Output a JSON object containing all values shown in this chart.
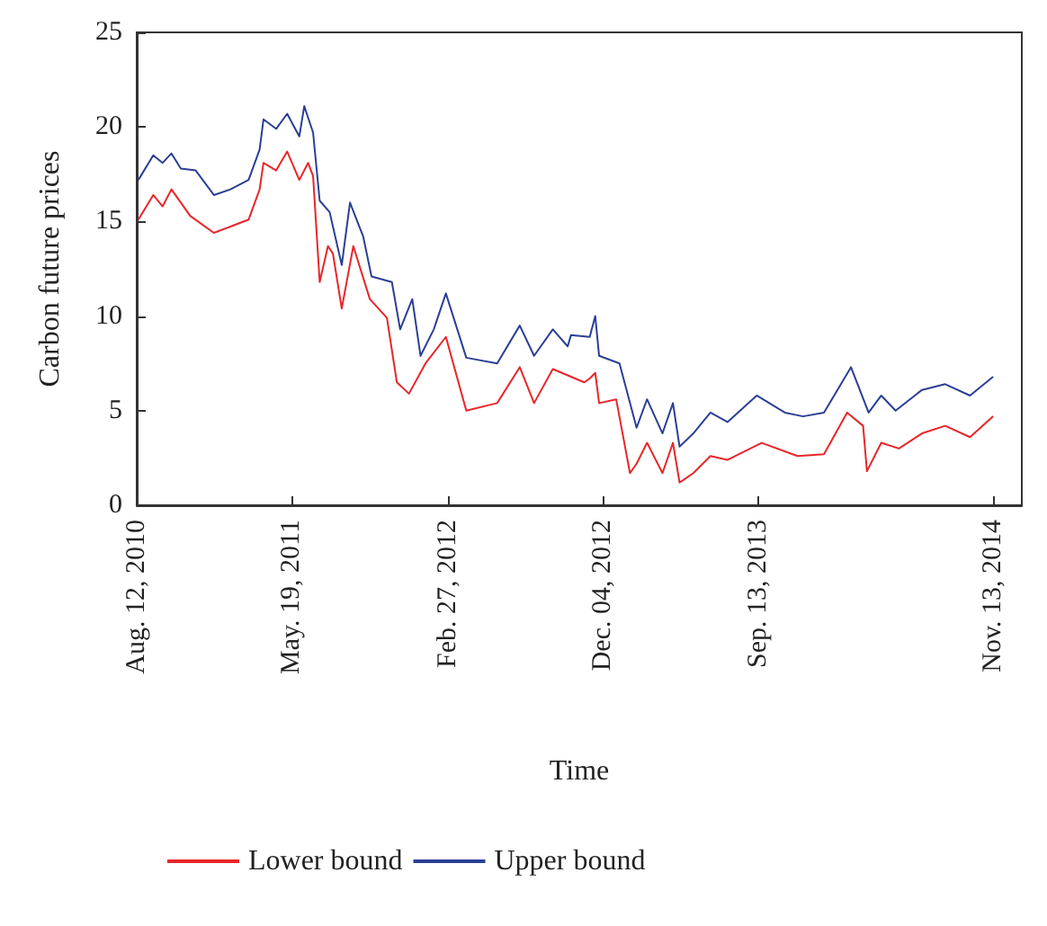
{
  "chart_data": {
    "type": "line",
    "xlabel": "Time",
    "ylabel": "Carbon future prices",
    "xlim": [
      "2010-08-12",
      "2015-01-04"
    ],
    "ylim": [
      0,
      25
    ],
    "yticks": [
      0,
      5,
      10,
      15,
      20,
      25
    ],
    "xticks": [
      {
        "value": "2010-08-12",
        "label": "Aug. 12, 2010"
      },
      {
        "value": "2011-05-19",
        "label": "May. 19, 2011"
      },
      {
        "value": "2012-02-27",
        "label": "Feb. 27, 2012"
      },
      {
        "value": "2012-12-04",
        "label": "Dec. 04, 2012"
      },
      {
        "value": "2013-09-13",
        "label": "Sep. 13, 2013"
      },
      {
        "value": "2014-11-13",
        "label": "Nov. 13, 2014"
      }
    ],
    "grid": false,
    "legend": "bottom left",
    "marker": "none",
    "line_style": "solid",
    "series": [
      {
        "name": "Lower bound",
        "color": "#e8262a",
        "x": [
          "2010-08-15",
          "2010-09-11",
          "2010-09-28",
          "2010-10-14",
          "2010-11-17",
          "2010-12-30",
          "2011-03-03",
          "2011-03-23",
          "2011-03-30",
          "2011-04-22",
          "2011-05-12",
          "2011-06-03",
          "2011-06-19",
          "2011-06-28",
          "2011-07-10",
          "2011-07-25",
          "2011-08-03",
          "2011-08-19",
          "2011-09-09",
          "2011-10-09",
          "2011-11-09",
          "2011-11-27",
          "2011-12-19",
          "2012-01-18",
          "2012-02-24",
          "2012-04-01",
          "2012-05-27",
          "2012-07-07",
          "2012-08-02",
          "2012-09-05",
          "2012-11-01",
          "2012-11-11",
          "2012-11-21",
          "2012-11-28",
          "2012-12-29",
          "2013-01-23",
          "2013-02-04",
          "2013-02-23",
          "2013-03-23",
          "2013-04-11",
          "2013-04-23",
          "2013-05-18",
          "2013-06-18",
          "2013-07-19",
          "2013-09-19",
          "2013-11-23",
          "2014-01-10",
          "2014-02-21",
          "2014-03-22",
          "2014-03-29",
          "2014-04-24",
          "2014-05-26",
          "2014-07-07",
          "2014-08-18",
          "2014-10-02",
          "2014-11-13"
        ],
        "values": [
          15.1,
          16.4,
          15.8,
          16.7,
          15.3,
          14.4,
          15.1,
          16.7,
          18.1,
          17.7,
          18.7,
          17.2,
          18.1,
          17.4,
          11.8,
          13.7,
          13.3,
          10.4,
          13.7,
          10.9,
          9.9,
          6.5,
          5.9,
          7.5,
          8.9,
          5.0,
          5.4,
          7.3,
          5.4,
          7.2,
          6.5,
          6.7,
          7.0,
          5.4,
          5.6,
          1.7,
          2.2,
          3.3,
          1.7,
          3.3,
          1.2,
          1.7,
          2.6,
          2.4,
          3.3,
          2.6,
          2.7,
          4.9,
          4.2,
          1.8,
          3.3,
          3.0,
          3.8,
          4.2,
          3.6,
          4.7
        ]
      },
      {
        "name": "Upper bound",
        "color": "#2b3f95",
        "x": [
          "2010-08-15",
          "2010-09-11",
          "2010-09-28",
          "2010-10-14",
          "2010-10-31",
          "2010-11-27",
          "2010-12-30",
          "2011-01-29",
          "2011-03-03",
          "2011-03-23",
          "2011-03-30",
          "2011-04-22",
          "2011-05-12",
          "2011-06-03",
          "2011-06-12",
          "2011-06-28",
          "2011-07-10",
          "2011-07-28",
          "2011-08-19",
          "2011-09-03",
          "2011-09-27",
          "2011-10-12",
          "2011-11-18",
          "2011-12-03",
          "2011-12-25",
          "2012-01-09",
          "2012-02-02",
          "2012-02-24",
          "2012-04-01",
          "2012-05-27",
          "2012-07-07",
          "2012-08-02",
          "2012-09-05",
          "2012-10-02",
          "2012-10-08",
          "2012-11-11",
          "2012-11-21",
          "2012-11-28",
          "2013-01-04",
          "2013-02-04",
          "2013-02-23",
          "2013-03-23",
          "2013-04-11",
          "2013-04-23",
          "2013-05-18",
          "2013-06-18",
          "2013-07-19",
          "2013-09-10",
          "2013-10-31",
          "2013-12-03",
          "2014-01-10",
          "2014-02-28",
          "2014-04-01",
          "2014-04-24",
          "2014-05-20",
          "2014-07-07",
          "2014-08-18",
          "2014-10-02",
          "2014-11-13"
        ],
        "values": [
          17.2,
          18.5,
          18.1,
          18.6,
          17.8,
          17.7,
          16.4,
          16.7,
          17.2,
          18.8,
          20.4,
          19.9,
          20.7,
          19.5,
          21.1,
          19.7,
          16.1,
          15.5,
          12.7,
          16.0,
          14.2,
          12.1,
          11.8,
          9.3,
          10.9,
          7.9,
          9.3,
          11.2,
          7.8,
          7.5,
          9.5,
          7.9,
          9.3,
          8.4,
          9.0,
          8.9,
          10.0,
          7.9,
          7.5,
          4.1,
          5.6,
          3.8,
          5.4,
          3.1,
          3.8,
          4.9,
          4.4,
          5.8,
          4.9,
          4.7,
          4.9,
          7.3,
          4.9,
          5.8,
          5.0,
          6.1,
          6.4,
          5.8,
          6.8
        ]
      }
    ]
  }
}
